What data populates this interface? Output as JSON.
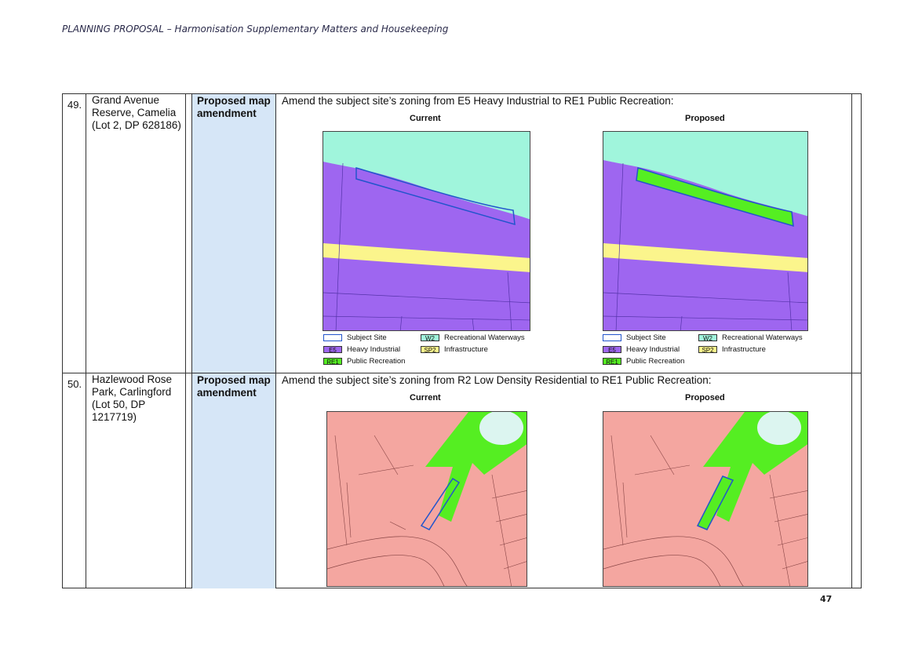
{
  "header": "PLANNING PROPOSAL – Harmonisation Supplementary Matters and Housekeeping",
  "page_number": "47",
  "rows": [
    {
      "number": "49.",
      "site": "Grand Avenue Reserve, Camelia (Lot 2, DP 628186)",
      "type": "Proposed map amendment",
      "description": "Amend the subject site’s zoning from E5 Heavy Industrial to RE1 Public Recreation:",
      "current_label": "Current",
      "proposed_label": "Proposed",
      "legend": [
        {
          "code": "",
          "label": "Subject Site"
        },
        {
          "code": "W2",
          "label": "Recreational Waterways"
        },
        {
          "code": "E5",
          "label": "Heavy Industrial"
        },
        {
          "code": "SP2",
          "label": "Infrastructure"
        },
        {
          "code": "RE1",
          "label": "Public Recreation"
        }
      ]
    },
    {
      "number": "50.",
      "site": "Hazlewood Rose Park, Carlingford (Lot 50, DP 1217719)",
      "type": "Proposed map amendment",
      "description": "Amend the subject site’s zoning from R2 Low Density Residential to RE1 Public Recreation:",
      "current_label": "Current",
      "proposed_label": "Proposed"
    }
  ],
  "colors": {
    "W2": "#a0f5dc",
    "E5": "#9e66f0",
    "SP2": "#fbf58c",
    "RE1": "#55ee22",
    "R2": "#f4a6a0",
    "subject": "#2255cc",
    "type_cell": "#d6e6f7"
  }
}
